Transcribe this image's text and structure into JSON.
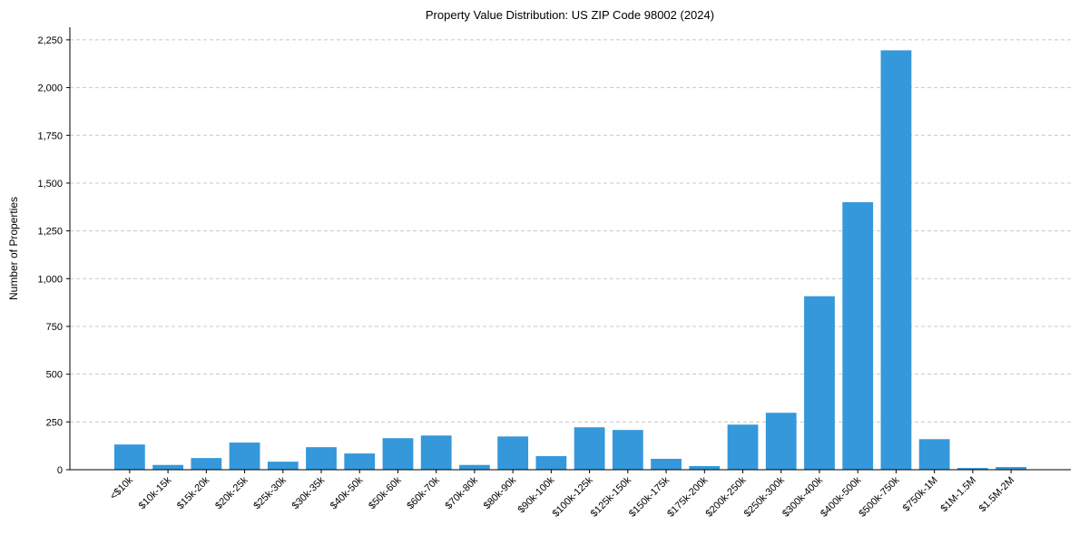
{
  "chart_data": {
    "type": "bar",
    "title": "Property Value Distribution: US ZIP Code 98002 (2024)",
    "xlabel": "",
    "ylabel": "Number of Properties",
    "categories": [
      "<$10k",
      "$10k-15k",
      "$15k-20k",
      "$20k-25k",
      "$25k-30k",
      "$30k-35k",
      "$40k-50k",
      "$50k-60k",
      "$60k-70k",
      "$70k-80k",
      "$80k-90k",
      "$90k-100k",
      "$100k-125k",
      "$125k-150k",
      "$150k-175k",
      "$175k-200k",
      "$200k-250k",
      "$250k-300k",
      "$300k-400k",
      "$400k-500k",
      "$500k-750k",
      "$750k-1M",
      "$1M-1.5M",
      "$1.5M-2M"
    ],
    "values": [
      132,
      25,
      61,
      142,
      42,
      118,
      85,
      165,
      179,
      25,
      174,
      71,
      222,
      208,
      57,
      19,
      236,
      298,
      908,
      1400,
      2195,
      160,
      9,
      14
    ],
    "ylim": [
      0,
      2316
    ],
    "yticks": [
      0,
      250,
      500,
      750,
      1000,
      1250,
      1500,
      1750,
      2000,
      2250
    ],
    "ytick_labels": [
      "0",
      "250",
      "500",
      "750",
      "1,000",
      "1,250",
      "1,500",
      "1,750",
      "2,000",
      "2,250"
    ],
    "grid": "y dashed",
    "bar_color": "#3498db"
  }
}
